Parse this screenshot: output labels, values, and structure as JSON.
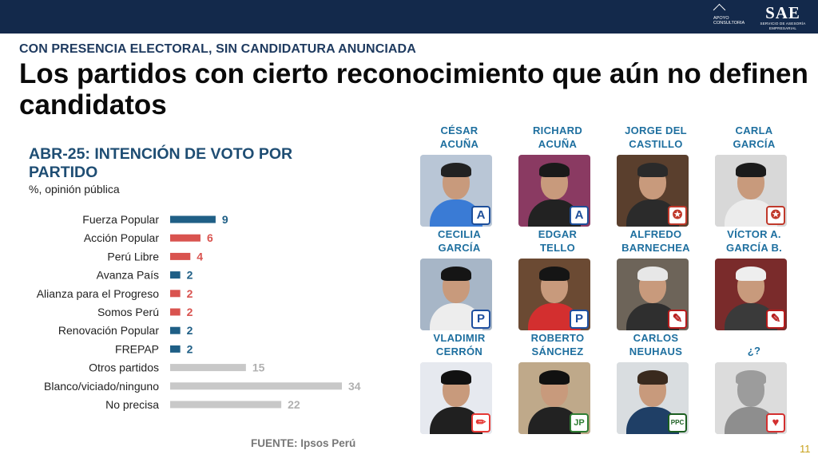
{
  "header": {
    "apoyo_logo_text": "APOYO CONSULTORIA",
    "sae_logo": "SAE",
    "sae_tagline": "SERVICIO DE ASESORÍA EMPRESARIAL"
  },
  "kicker": "CON PRESENCIA ELECTORAL, SIN CANDIDATURA ANUNCIADA",
  "headline": "Los partidos con cierto reconocimiento que aún no definen candidatos",
  "chart_data": {
    "type": "bar",
    "orientation": "horizontal",
    "title": "ABR-25: INTENCIÓN DE VOTO POR PARTIDO",
    "subtitle": "%, opinión pública",
    "categories": [
      "Fuerza Popular",
      "Acción Popular",
      "Perú Libre",
      "Avanza País",
      "Alianza para el Progreso",
      "Somos Perú",
      "Renovación Popular",
      "FREPAP",
      "Otros partidos",
      "Blanco/viciado/ninguno",
      "No precisa"
    ],
    "values": [
      9,
      6,
      4,
      2,
      2,
      2,
      2,
      2,
      15,
      34,
      22
    ],
    "bar_colors": [
      "#1f5f86",
      "#d9534f",
      "#d9534f",
      "#1f5f86",
      "#d9534f",
      "#d9534f",
      "#1f5f86",
      "#1f5f86",
      "#c8c8c8",
      "#c8c8c8",
      "#c8c8c8"
    ],
    "label_colors": [
      "#1f5f86",
      "#d9534f",
      "#d9534f",
      "#1f5f86",
      "#d9534f",
      "#d9534f",
      "#1f5f86",
      "#1f5f86",
      "#b0b0b0",
      "#b0b0b0",
      "#b0b0b0"
    ],
    "xlim": [
      0,
      34
    ],
    "grid": false,
    "legend": "none"
  },
  "source": "FUENTE: Ipsos Perú",
  "page_number": "11",
  "candidates": [
    {
      "name_line1": "CÉSAR",
      "name_line2": "ACUÑA",
      "badge": "A",
      "badge_color": "#1e4f9a",
      "shirt": "#3a7bd5",
      "bg": "#b9c6d6",
      "hair": "#222"
    },
    {
      "name_line1": "RICHARD",
      "name_line2": "ACUÑA",
      "badge": "A",
      "badge_color": "#1e4f9a",
      "shirt": "#222",
      "bg": "#8a3a62",
      "hair": "#1a1a1a"
    },
    {
      "name_line1": "JORGE DEL",
      "name_line2": "CASTILLO",
      "badge": "✪",
      "badge_color": "#c0392b",
      "shirt": "#2b2b2b",
      "bg": "#5a3f2d",
      "hair": "#2a2a2a"
    },
    {
      "name_line1": "CARLA",
      "name_line2": "GARCÍA",
      "badge": "✪",
      "badge_color": "#c0392b",
      "shirt": "#ececec",
      "bg": "#d8d8d8",
      "hair": "#1b1b1b"
    },
    {
      "name_line1": "CECILIA",
      "name_line2": "GARCÍA",
      "badge": "P",
      "badge_color": "#1d4e9e",
      "shirt": "#ededed",
      "bg": "#a7b6c7",
      "hair": "#151515"
    },
    {
      "name_line1": "EDGAR",
      "name_line2": "TELLO",
      "badge": "P",
      "badge_color": "#1d4e9e",
      "shirt": "#d32f2f",
      "bg": "#6b4a33",
      "hair": "#151515"
    },
    {
      "name_line1": "ALFREDO",
      "name_line2": "BARNECHEA",
      "badge": "✎",
      "badge_color": "#b71c1c",
      "shirt": "#2f2f2f",
      "bg": "#6d6459",
      "hair": "#e7e7e7"
    },
    {
      "name_line1": "VÍCTOR A.",
      "name_line2": "GARCÍA B.",
      "badge": "✎",
      "badge_color": "#b71c1c",
      "shirt": "#3a3a3a",
      "bg": "#7a2b2b",
      "hair": "#eeeeee"
    },
    {
      "name_line1": "VLADIMIR",
      "name_line2": "CERRÓN",
      "badge": "✏",
      "badge_color": "#e53935",
      "shirt": "#202020",
      "bg": "#e6e9ef",
      "hair": "#111"
    },
    {
      "name_line1": "ROBERTO",
      "name_line2": "SÁNCHEZ",
      "badge": "JP",
      "badge_color": "#2e7d32",
      "shirt": "#222",
      "bg": "#bfa98a",
      "hair": "#111"
    },
    {
      "name_line1": "CARLOS",
      "name_line2": "NEUHAUS",
      "badge": "PPC",
      "badge_color": "#1b5e20",
      "shirt": "#1f3f66",
      "bg": "#d9dde0",
      "hair": "#3a2a1e"
    },
    {
      "name_line1": "¿?",
      "name_line2": "",
      "badge": "♥",
      "badge_color": "#d32f2f",
      "shirt": "#8e8e8e",
      "bg": "#dcdcdc",
      "hair": "#9c9c9c"
    }
  ]
}
